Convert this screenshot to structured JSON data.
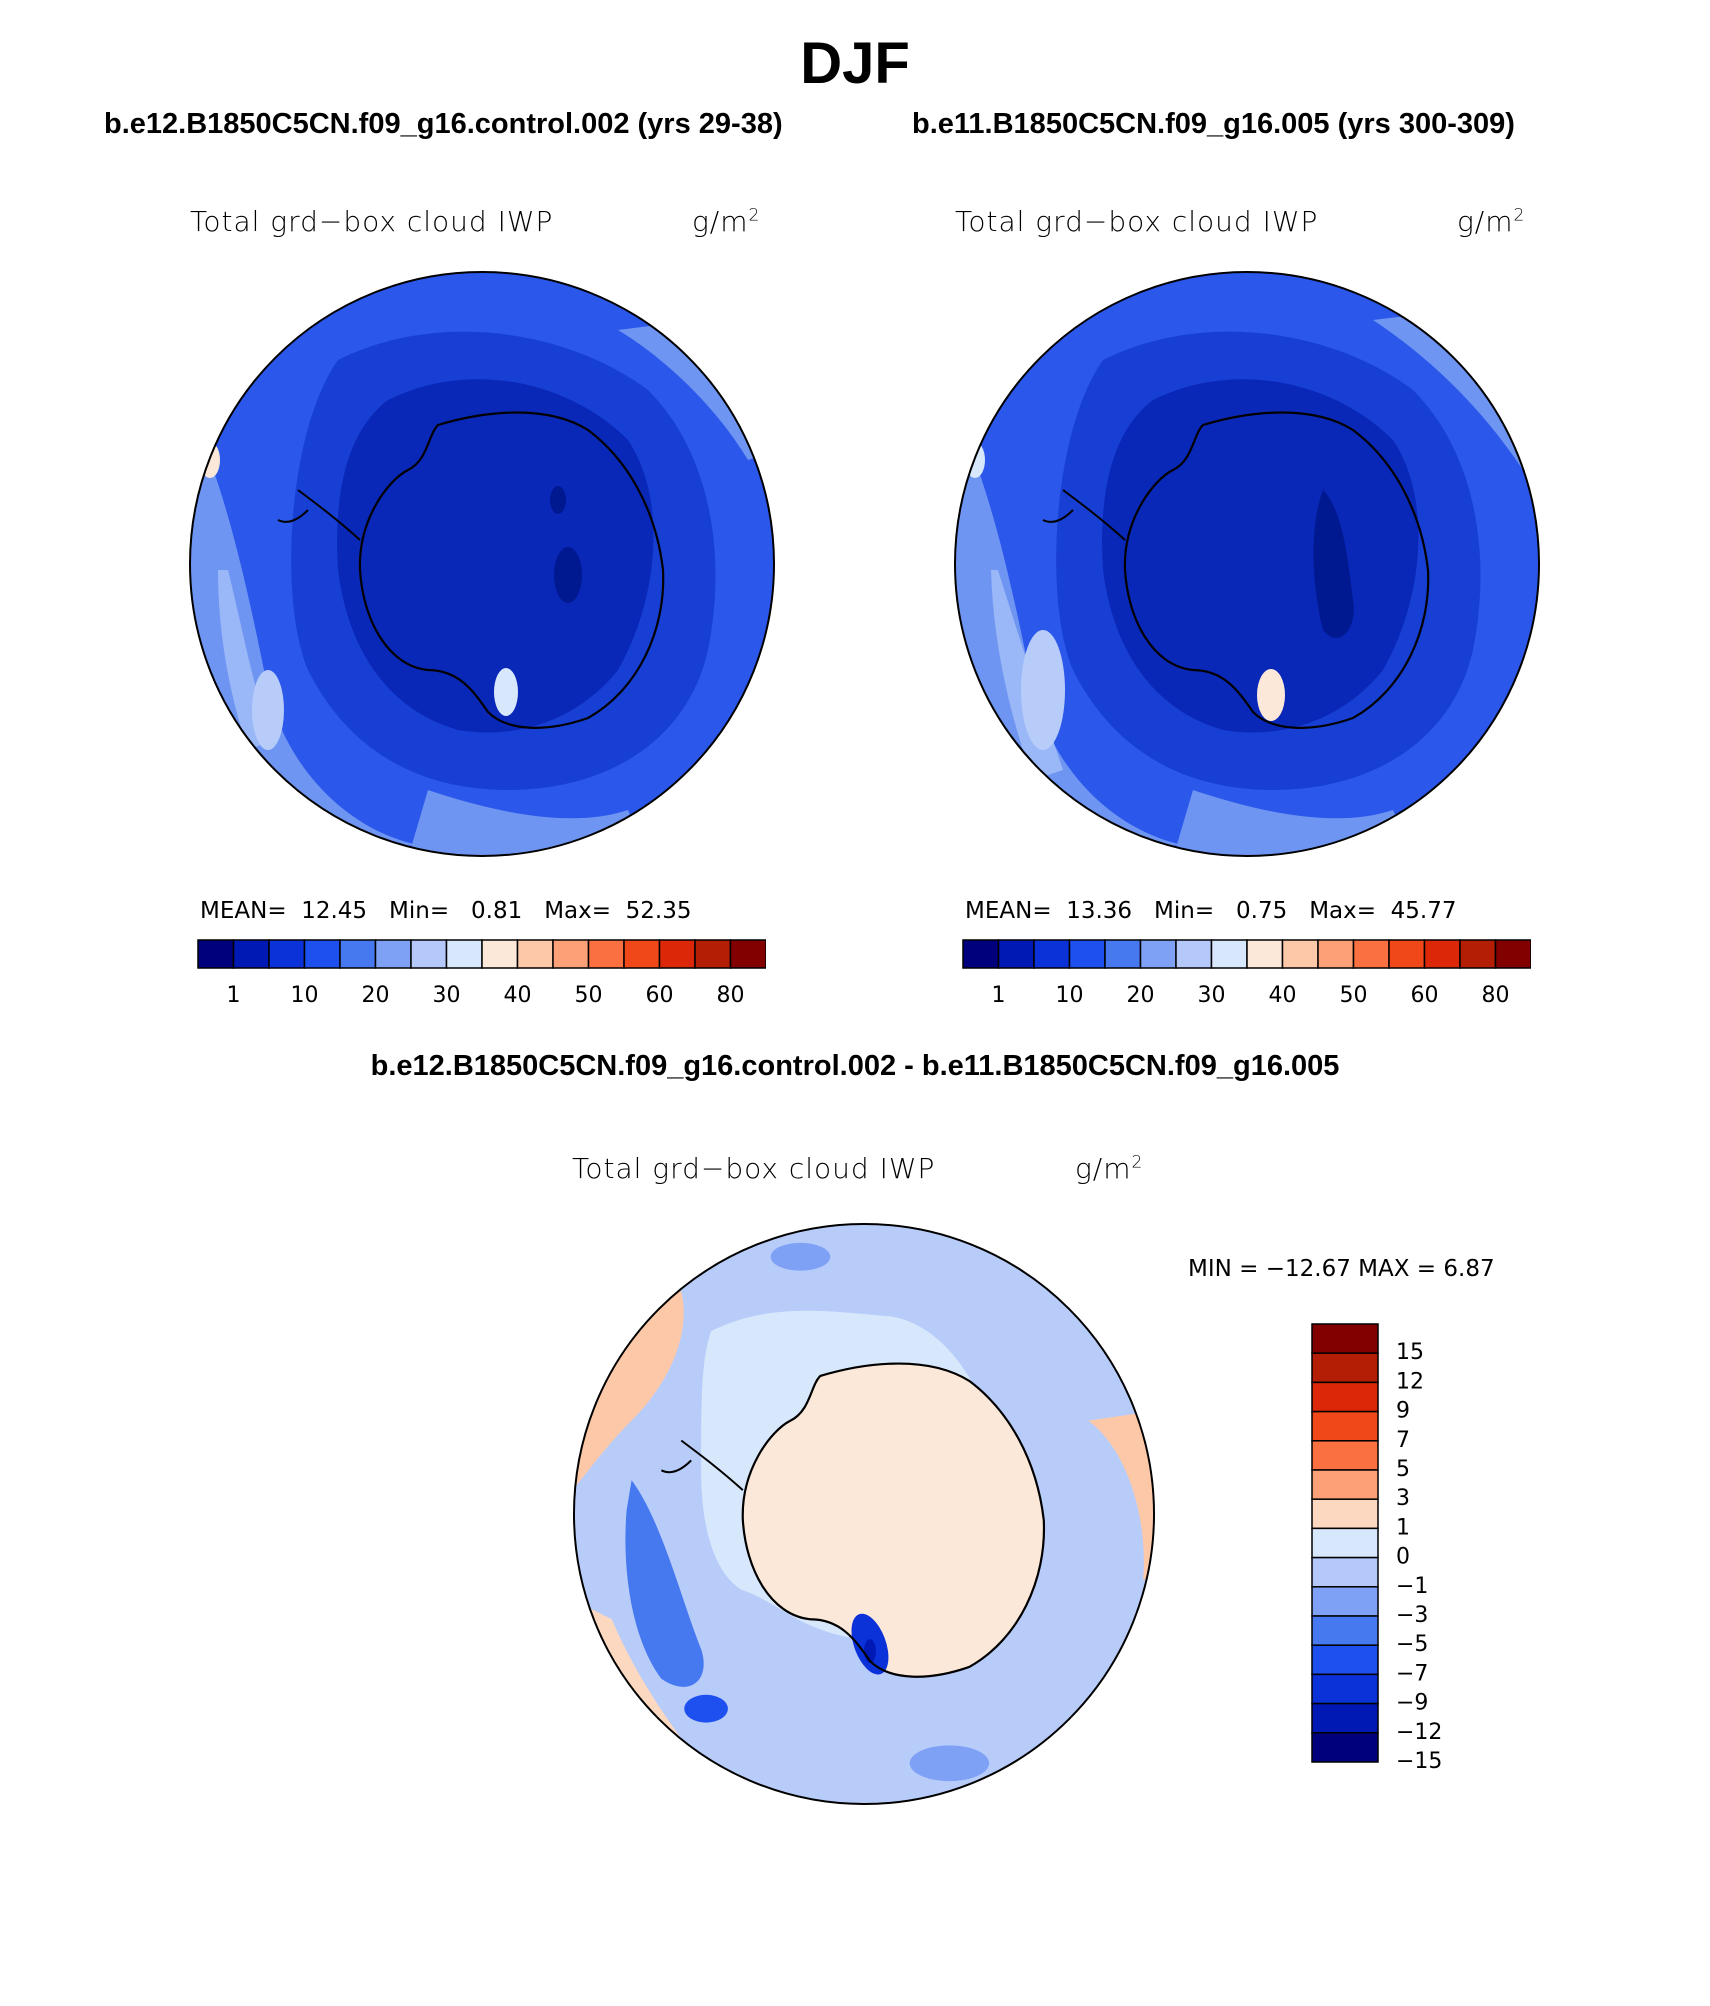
{
  "season": "DJF",
  "panels": [
    {
      "case": "b.e12.B1850C5CN.f09_g16.control.002 (yrs 29-38)",
      "variable": "Total grd−box cloud IWP",
      "units_base": "g/m",
      "units_exp": "2",
      "mean_label": "MEAN=",
      "mean": "12.45",
      "min_label": "Min=",
      "min": "0.81",
      "max_label": "Max=",
      "max": "52.35"
    },
    {
      "case": "b.e11.B1850C5CN.f09_g16.005 (yrs 300-309)",
      "variable": "Total grd−box cloud IWP",
      "units_base": "g/m",
      "units_exp": "2",
      "mean_label": "MEAN=",
      "mean": "13.36",
      "min_label": "Min=",
      "min": "0.75",
      "max_label": "Max=",
      "max": "45.77"
    }
  ],
  "diff": {
    "case": "b.e12.B1850C5CN.f09_g16.control.002 - b.e11.B1850C5CN.f09_g16.005",
    "variable": "Total grd−box cloud IWP",
    "units_base": "g/m",
    "units_exp": "2",
    "minmax": "MIN = −12.67  MAX =     6.87"
  },
  "colorbar_top": {
    "colors": [
      "#00007d",
      "#0018b4",
      "#0a32d8",
      "#1e50f0",
      "#4678f0",
      "#7ea0f5",
      "#b4c8fa",
      "#d8e8fc",
      "#fce8d8",
      "#fcc8a8",
      "#fca078",
      "#fa7040",
      "#f04818",
      "#dc2808",
      "#b41e05",
      "#820000"
    ],
    "tick_labels": [
      "1",
      "10",
      "20",
      "30",
      "40",
      "50",
      "60",
      "80"
    ]
  },
  "colorbar_diff": {
    "colors": [
      "#820000",
      "#b41e05",
      "#dc2808",
      "#f04818",
      "#fa7040",
      "#fca078",
      "#fcd8c0",
      "#d8e8fc",
      "#b4c8fa",
      "#7ea0f5",
      "#4678f0",
      "#1e50f0",
      "#0a32d8",
      "#0018b4",
      "#00007d"
    ],
    "tick_labels": [
      "15",
      "12",
      "9",
      "7",
      "5",
      "3",
      "1",
      "0",
      "−1",
      "−3",
      "−5",
      "−7",
      "−9",
      "−12",
      "−15"
    ]
  }
}
